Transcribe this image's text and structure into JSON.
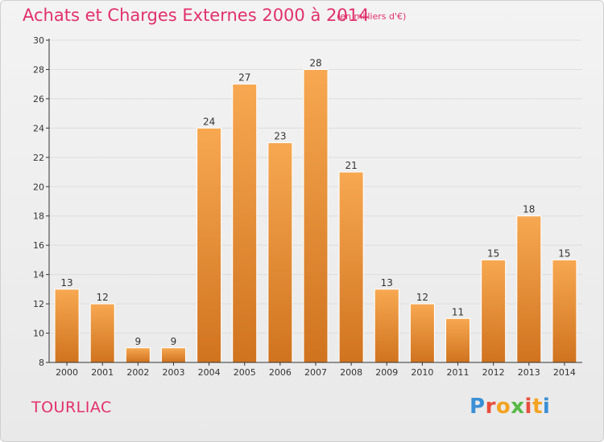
{
  "header": {
    "title": "Achats et Charges Externes 2000 à 2014",
    "subtitle": "(en milliers d'€)"
  },
  "footer": {
    "commune": "TOURLIAC",
    "logo_text": "Proxiti"
  },
  "colors": {
    "accent": "#e1306c",
    "bar_top": "#f7a851",
    "bar_bottom": "#d0731f",
    "axis": "#333333",
    "grid": "#dddddd"
  },
  "chart_data": {
    "type": "bar",
    "categories": [
      "2000",
      "2001",
      "2002",
      "2003",
      "2004",
      "2005",
      "2006",
      "2007",
      "2008",
      "2009",
      "2010",
      "2011",
      "2012",
      "2013",
      "2014"
    ],
    "values": [
      13,
      12,
      9,
      9,
      24,
      27,
      23,
      28,
      21,
      13,
      12,
      11,
      15,
      18,
      15
    ],
    "ylim": [
      8,
      30
    ],
    "yticks": [
      8,
      10,
      12,
      14,
      16,
      18,
      20,
      22,
      24,
      26,
      28,
      30
    ],
    "grid": true,
    "legend": "none"
  }
}
